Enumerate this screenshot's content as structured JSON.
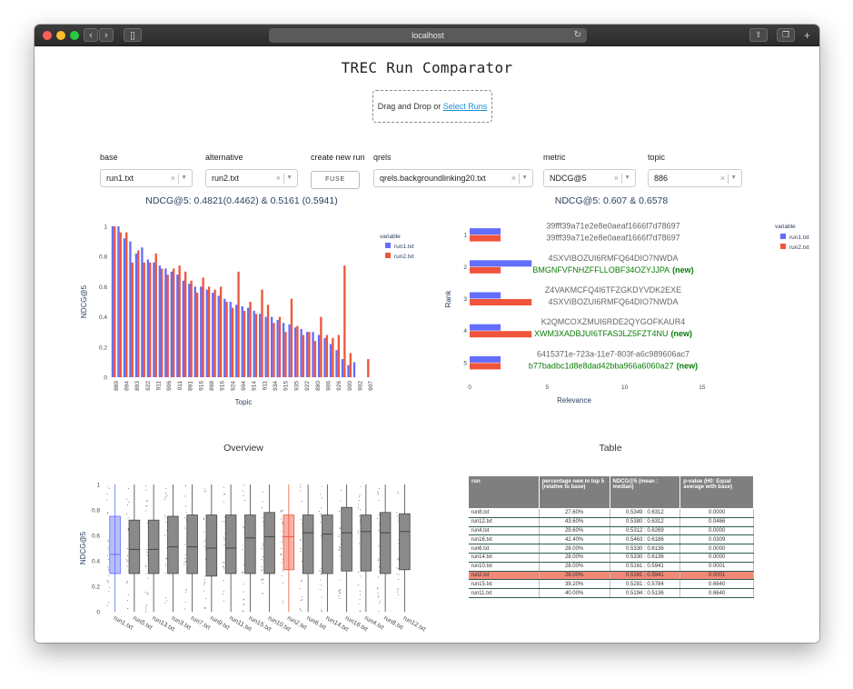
{
  "browser": {
    "url": "localhost"
  },
  "app": {
    "title": "TREC Run Comparator",
    "dropzone_text": "Drag and Drop or ",
    "dropzone_link": "Select Runs"
  },
  "controls": {
    "base": {
      "label": "base",
      "value": "run1.txt"
    },
    "alternative": {
      "label": "alternative",
      "value": "run2.txt"
    },
    "create": {
      "label": "create new run",
      "button": "FUSE"
    },
    "qrels": {
      "label": "qrels",
      "value": "qrels.backgroundlinking20.txt"
    },
    "metric": {
      "label": "metric",
      "value": "NDCG@5"
    },
    "topic": {
      "label": "topic",
      "value": "886"
    },
    "clear_symbol": "×",
    "caret_symbol": "▼"
  },
  "stats": {
    "left": "NDCG@5: 0.4821(0.4462) & 0.5161 (0.5941)",
    "right": "NDCG@5: 0.607 & 0.6578"
  },
  "colors": {
    "run1": "#636efa",
    "run2": "#ef553b",
    "grey_box": "#7f7f7f",
    "axis_text": "#2a3f5f"
  },
  "chart_data": [
    {
      "type": "bar",
      "ylabel": "NDCG@5",
      "xlabel": "Topic",
      "ylim": [
        0,
        1
      ],
      "yticks": [
        "0",
        "0.2",
        "0.4",
        "0.6",
        "0.8",
        "1"
      ],
      "xtick_labels": [
        "889",
        "894",
        "893",
        "922",
        "911",
        "906",
        "911",
        "891",
        "916",
        "898",
        "916",
        "924",
        "904",
        "914",
        "911",
        "934",
        "915",
        "935",
        "922",
        "890",
        "906",
        "926",
        "900",
        "902",
        "907"
      ],
      "legend_title": "variable",
      "series": [
        {
          "name": "run1.txt",
          "values": [
            1,
            1,
            0.92,
            0.9,
            0.82,
            0.86,
            0.78,
            0.76,
            0.74,
            0.72,
            0.7,
            0.68,
            0.64,
            0.62,
            0.6,
            0.6,
            0.58,
            0.56,
            0.54,
            0.52,
            0.5,
            0.48,
            0.47,
            0.46,
            0.44,
            0.42,
            0.4,
            0.4,
            0.38,
            0.36,
            0.35,
            0.33,
            0.32,
            0.3,
            0.3,
            0.28,
            0.26,
            0.22,
            0.18,
            0.12,
            0.08,
            0.1,
            0,
            0,
            0
          ]
        },
        {
          "name": "run2.txt",
          "values": [
            1,
            0.96,
            0.96,
            0.76,
            0.84,
            0.76,
            0.76,
            0.82,
            0.72,
            0.68,
            0.72,
            0.74,
            0.7,
            0.64,
            0.56,
            0.66,
            0.6,
            0.58,
            0.6,
            0.5,
            0.46,
            0.7,
            0.44,
            0.5,
            0.42,
            0.58,
            0.48,
            0.36,
            0.4,
            0.3,
            0.52,
            0.34,
            0.28,
            0.3,
            0.24,
            0.4,
            0.28,
            0.26,
            0.28,
            0.74,
            0.16,
            0,
            0,
            0.12,
            0
          ]
        }
      ],
      "legend_placement": "top-right"
    },
    {
      "type": "bar",
      "orientation": "horizontal",
      "ylabel": "Rank",
      "xlabel": "Relevance",
      "xlim": [
        0,
        17
      ],
      "xticks": [
        "0",
        "5",
        "10",
        "15"
      ],
      "ranks": [
        "1",
        "2",
        "3",
        "4",
        "5"
      ],
      "legend_title": "variable",
      "series": [
        {
          "name": "run1.txt",
          "values": [
            2,
            4,
            2,
            2,
            2
          ],
          "labels": [
            "39fff39a71e2e8e0aeaf1666f7d78697",
            "4SXVIBOZUI6RMFQ64DIO7NWDA",
            "Z4VAKMCFQ4I6TFZGKDYVDK2EXE",
            "K2QMCOXZMUI6RDE2QYGOFKAUR4",
            "6415371e-723a-11e7-803f-a6c989606ac7"
          ]
        },
        {
          "name": "run2.txt",
          "values": [
            2,
            2,
            4,
            4,
            2
          ],
          "labels": [
            "39fff39a71e2e8e0aeaf1666f7d78697",
            "BMGNFVFNHZFFLLOBF34OZYJJPA",
            "4SXVIBOZUI6RMFQ64DIO7NWDA",
            "XWM3XADBJUI6TFAS3LZ5FZT4NU",
            "b77badbc1d8e8dad42bba966a6060a27"
          ],
          "new_flags": [
            false,
            true,
            false,
            true,
            true
          ]
        }
      ],
      "new_suffix": "(new)",
      "legend_placement": "top-right"
    },
    {
      "type": "box",
      "title": "Overview",
      "ylabel": "NDCG@5",
      "ylim": [
        0,
        1
      ],
      "yticks": [
        "0",
        "0.2",
        "0.4",
        "0.6",
        "0.8",
        "1"
      ],
      "categories": [
        "run1.txt",
        "run5.txt",
        "run13.txt",
        "run3.txt",
        "run7.txt",
        "run9.txt",
        "run11.txt",
        "run15.txt",
        "run10.txt",
        "run2.txt",
        "run6.txt",
        "run14.txt",
        "run16.txt",
        "run4.txt",
        "run8.txt",
        "run12.txt"
      ],
      "boxes": [
        {
          "q1": 0.3,
          "median": 0.45,
          "q3": 0.75
        },
        {
          "q1": 0.3,
          "median": 0.49,
          "q3": 0.72
        },
        {
          "q1": 0.3,
          "median": 0.49,
          "q3": 0.72
        },
        {
          "q1": 0.3,
          "median": 0.51,
          "q3": 0.75
        },
        {
          "q1": 0.3,
          "median": 0.51,
          "q3": 0.76
        },
        {
          "q1": 0.28,
          "median": 0.5,
          "q3": 0.76
        },
        {
          "q1": 0.3,
          "median": 0.5,
          "q3": 0.76
        },
        {
          "q1": 0.3,
          "median": 0.58,
          "q3": 0.76
        },
        {
          "q1": 0.3,
          "median": 0.59,
          "q3": 0.78
        },
        {
          "q1": 0.33,
          "median": 0.59,
          "q3": 0.76
        },
        {
          "q1": 0.3,
          "median": 0.62,
          "q3": 0.76
        },
        {
          "q1": 0.3,
          "median": 0.61,
          "q3": 0.76
        },
        {
          "q1": 0.32,
          "median": 0.62,
          "q3": 0.82
        },
        {
          "q1": 0.32,
          "median": 0.63,
          "q3": 0.76
        },
        {
          "q1": 0.3,
          "median": 0.62,
          "q3": 0.78
        },
        {
          "q1": 0.33,
          "median": 0.63,
          "q3": 0.77
        }
      ]
    }
  ],
  "table": {
    "title": "Table",
    "headers": [
      "run",
      "percentage new in top 5 (relative to base)",
      "NDCG@5 (mean : median)",
      "p-value (H0: Equal average with base)"
    ],
    "rows": [
      [
        "run8.txt",
        "27.60%",
        "0.5349 : 0.6312",
        "0.0000"
      ],
      [
        "run12.txt",
        "43.60%",
        "0.5380 : 0.6312",
        "0.0466"
      ],
      [
        "run4.txt",
        "29.60%",
        "0.5312 : 0.6269",
        "0.0000"
      ],
      [
        "run16.txt",
        "42.40%",
        "0.5463 : 0.6186",
        "0.0309"
      ],
      [
        "run6.txt",
        "28.00%",
        "0.5330 : 0.6136",
        "0.0000"
      ],
      [
        "run14.txt",
        "28.00%",
        "0.5330 : 0.6136",
        "0.0000"
      ],
      [
        "run10.txt",
        "28.00%",
        "0.5161 : 0.5941",
        "0.0001"
      ],
      [
        "run2.txt",
        "28.00%",
        "0.5161 : 0.5941",
        "0.0001"
      ],
      [
        "run15.txt",
        "39.20%",
        "0.5281 : 0.5784",
        "0.6640"
      ],
      [
        "run11.txt",
        "40.00%",
        "0.5194 : 0.5136",
        "0.6640"
      ]
    ],
    "highlight_run": "run2.txt"
  }
}
